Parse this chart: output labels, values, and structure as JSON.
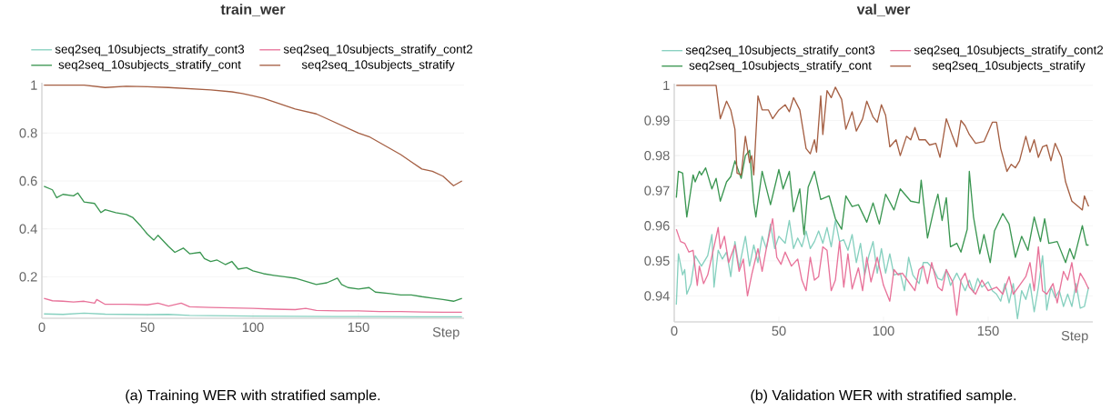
{
  "chart_data": [
    {
      "type": "line",
      "title": "train_wer",
      "xlabel": "Step",
      "xlim": [
        0,
        200
      ],
      "ylim": [
        0.027,
        1.01
      ],
      "xticks": [
        0,
        50,
        100,
        150
      ],
      "yticks": [
        0.2,
        0.4,
        0.6,
        0.8,
        1
      ],
      "grid": "y",
      "legend": "top",
      "line_style": "solid",
      "annotations": [
        "(a) Training WER with stratified sample."
      ],
      "series": [
        {
          "name": "seq2seq_10subjects_stratify_cont3",
          "color": "#86d0bf",
          "x": [
            1,
            10,
            20,
            30,
            40,
            50,
            60,
            70,
            80,
            90,
            100,
            120,
            140,
            160,
            180,
            199
          ],
          "values": [
            0.045,
            0.043,
            0.048,
            0.044,
            0.043,
            0.042,
            0.043,
            0.039,
            0.038,
            0.037,
            0.036,
            0.035,
            0.034,
            0.034,
            0.033,
            0.033
          ]
        },
        {
          "name": "seq2seq_10subjects_stratify_cont2",
          "color": "#e8739a",
          "x": [
            1,
            5,
            10,
            15,
            20,
            25,
            26,
            30,
            40,
            50,
            55,
            60,
            66,
            70,
            80,
            90,
            100,
            110,
            120,
            125,
            130,
            140,
            150,
            160,
            170,
            180,
            190,
            199
          ],
          "values": [
            0.11,
            0.1,
            0.098,
            0.095,
            0.098,
            0.09,
            0.105,
            0.085,
            0.085,
            0.083,
            0.09,
            0.078,
            0.09,
            0.075,
            0.072,
            0.07,
            0.068,
            0.065,
            0.063,
            0.068,
            0.06,
            0.058,
            0.058,
            0.055,
            0.055,
            0.053,
            0.052,
            0.052
          ]
        },
        {
          "name": "seq2seq_10subjects_stratify_cont",
          "color": "#3a9651",
          "x": [
            1,
            5,
            7,
            10,
            15,
            17,
            20,
            25,
            28,
            30,
            35,
            40,
            43,
            47,
            50,
            53,
            55,
            60,
            63,
            67,
            70,
            75,
            77,
            80,
            83,
            87,
            90,
            93,
            97,
            100,
            105,
            110,
            115,
            120,
            125,
            130,
            135,
            140,
            142,
            145,
            150,
            155,
            158,
            165,
            170,
            175,
            180,
            185,
            190,
            195,
            199
          ],
          "values": [
            0.578,
            0.563,
            0.53,
            0.544,
            0.538,
            0.55,
            0.512,
            0.506,
            0.468,
            0.48,
            0.468,
            0.46,
            0.448,
            0.41,
            0.378,
            0.353,
            0.373,
            0.327,
            0.302,
            0.32,
            0.296,
            0.302,
            0.276,
            0.264,
            0.27,
            0.251,
            0.264,
            0.232,
            0.238,
            0.225,
            0.213,
            0.206,
            0.2,
            0.194,
            0.181,
            0.168,
            0.175,
            0.194,
            0.168,
            0.155,
            0.149,
            0.155,
            0.136,
            0.13,
            0.124,
            0.124,
            0.117,
            0.111,
            0.105,
            0.098,
            0.11
          ]
        },
        {
          "name": "seq2seq_10subjects_stratify",
          "color": "#a55f43",
          "x": [
            1,
            10,
            20,
            30,
            40,
            50,
            60,
            70,
            80,
            90,
            95,
            100,
            105,
            110,
            115,
            120,
            125,
            130,
            135,
            140,
            145,
            150,
            155,
            160,
            165,
            170,
            175,
            180,
            185,
            190,
            195,
            199
          ],
          "values": [
            1,
            1,
            1,
            0.99,
            0.995,
            0.993,
            0.99,
            0.985,
            0.98,
            0.972,
            0.965,
            0.955,
            0.945,
            0.93,
            0.915,
            0.9,
            0.89,
            0.88,
            0.86,
            0.84,
            0.82,
            0.8,
            0.785,
            0.76,
            0.735,
            0.71,
            0.68,
            0.65,
            0.64,
            0.62,
            0.58,
            0.6
          ]
        }
      ]
    },
    {
      "type": "line",
      "title": "val_wer",
      "xlabel": "Step",
      "xlim": [
        0,
        200
      ],
      "ylim": [
        0.9326,
        1.0005
      ],
      "xticks": [
        0,
        50,
        100,
        150
      ],
      "yticks": [
        0.94,
        0.95,
        0.96,
        0.97,
        0.98,
        0.99,
        1
      ],
      "grid": "y",
      "legend": "top",
      "line_style": "solid",
      "annotations": [
        "(b) Validation WER with stratified sample."
      ],
      "series": [
        {
          "name": "seq2seq_10subjects_stratify_cont3",
          "color": "#86d0bf",
          "x": [
            1,
            2,
            4,
            5,
            6,
            8,
            10,
            13,
            16,
            18,
            19,
            21,
            23,
            25,
            27,
            29,
            31,
            34,
            36,
            38,
            40,
            42,
            44,
            46,
            48,
            50,
            53,
            55,
            57,
            59,
            61,
            63,
            65,
            67,
            69,
            71,
            73,
            75,
            77,
            79,
            81,
            83,
            85,
            87,
            89,
            91,
            93,
            95,
            97,
            99,
            101,
            103,
            105,
            108,
            110,
            112,
            114,
            117,
            119,
            121,
            124,
            126,
            128,
            130,
            132,
            135,
            137,
            139,
            141,
            143,
            145,
            147,
            150,
            152,
            154,
            156,
            158,
            160,
            162,
            164,
            166,
            168,
            170,
            172,
            174,
            176,
            178,
            180,
            182,
            184,
            186,
            188,
            190,
            192,
            194,
            196,
            198
          ],
          "values": [
            0.9375,
            0.952,
            0.946,
            0.9475,
            0.9405,
            0.9435,
            0.9515,
            0.9485,
            0.9515,
            0.9575,
            0.9425,
            0.953,
            0.9505,
            0.9525,
            0.9455,
            0.9555,
            0.948,
            0.957,
            0.9485,
            0.9545,
            0.9495,
            0.957,
            0.9535,
            0.9605,
            0.9535,
            0.957,
            0.955,
            0.9615,
            0.9535,
            0.9565,
            0.954,
            0.9585,
            0.9535,
            0.9555,
            0.9585,
            0.955,
            0.9595,
            0.954,
            0.9615,
            0.9555,
            0.956,
            0.953,
            0.9575,
            0.9495,
            0.955,
            0.946,
            0.9515,
            0.9555,
            0.9465,
            0.9535,
            0.9465,
            0.952,
            0.946,
            0.9465,
            0.9415,
            0.951,
            0.946,
            0.9435,
            0.9495,
            0.9495,
            0.9475,
            0.945,
            0.9445,
            0.9475,
            0.943,
            0.9465,
            0.944,
            0.9415,
            0.9445,
            0.941,
            0.945,
            0.9425,
            0.944,
            0.9415,
            0.9405,
            0.9385,
            0.9435,
            0.938,
            0.9435,
            0.9335,
            0.9415,
            0.939,
            0.9435,
            0.9355,
            0.9425,
            0.9515,
            0.936,
            0.9425,
            0.9395,
            0.9415,
            0.937,
            0.9405,
            0.937,
            0.9435,
            0.9365,
            0.937,
            0.9425
          ]
        },
        {
          "name": "seq2seq_10subjects_stratify_cont2",
          "color": "#e8739a",
          "x": [
            1,
            3,
            5,
            7,
            9,
            11,
            12,
            14,
            16,
            19,
            21,
            22,
            24,
            26,
            29,
            31,
            33,
            35,
            37,
            40,
            42,
            44,
            47,
            49,
            51,
            53,
            56,
            59,
            61,
            63,
            65,
            67,
            69,
            71,
            73,
            75,
            77,
            79,
            81,
            83,
            85,
            88,
            90,
            92,
            94,
            97,
            100,
            103,
            105,
            107,
            109,
            112,
            115,
            117,
            119,
            121,
            123,
            126,
            128,
            130,
            133,
            135,
            137,
            139,
            141,
            144,
            147,
            150,
            154,
            157,
            160,
            162,
            165,
            168,
            170,
            172,
            174,
            176,
            178,
            181,
            183,
            186,
            188,
            190,
            192,
            194,
            196,
            198
          ],
          "values": [
            0.959,
            0.9555,
            0.955,
            0.9525,
            0.953,
            0.943,
            0.9485,
            0.9435,
            0.946,
            0.954,
            0.9595,
            0.9535,
            0.957,
            0.9495,
            0.9545,
            0.947,
            0.9505,
            0.94,
            0.946,
            0.9535,
            0.947,
            0.9535,
            0.962,
            0.951,
            0.949,
            0.9525,
            0.9485,
            0.9505,
            0.9445,
            0.9415,
            0.951,
            0.9445,
            0.9455,
            0.954,
            0.953,
            0.9415,
            0.9445,
            0.9555,
            0.9425,
            0.952,
            0.942,
            0.948,
            0.9415,
            0.951,
            0.944,
            0.951,
            0.943,
            0.9385,
            0.9475,
            0.946,
            0.9465,
            0.944,
            0.9415,
            0.9475,
            0.9485,
            0.9435,
            0.9495,
            0.9425,
            0.9415,
            0.9475,
            0.944,
            0.9345,
            0.9445,
            0.9465,
            0.9425,
            0.9405,
            0.9445,
            0.9415,
            0.9425,
            0.9405,
            0.9455,
            0.9405,
            0.943,
            0.9455,
            0.9495,
            0.9415,
            0.954,
            0.9415,
            0.9405,
            0.9435,
            0.938,
            0.947,
            0.9445,
            0.9495,
            0.941,
            0.9465,
            0.9445,
            0.942
          ]
        },
        {
          "name": "seq2seq_10subjects_stratify_cont",
          "color": "#3a9651",
          "x": [
            1,
            2,
            4,
            6,
            9,
            10,
            12,
            13,
            15,
            18,
            20,
            22,
            25,
            27,
            29,
            32,
            34,
            36,
            38,
            39,
            42,
            46,
            50,
            52,
            55,
            57,
            60,
            62,
            64,
            67,
            70,
            74,
            77,
            80,
            82,
            85,
            88,
            92,
            95,
            98,
            101,
            105,
            108,
            113,
            117,
            118,
            121,
            124,
            126,
            128,
            130,
            132,
            135,
            137,
            140,
            141,
            143,
            146,
            148,
            151,
            153,
            157,
            160,
            163,
            166,
            169,
            172,
            175,
            177,
            179,
            183,
            187,
            189,
            191,
            195,
            197,
            198
          ],
          "values": [
            0.968,
            0.9755,
            0.975,
            0.9625,
            0.9745,
            0.9725,
            0.9755,
            0.9745,
            0.9765,
            0.9705,
            0.9735,
            0.967,
            0.9725,
            0.974,
            0.9785,
            0.9735,
            0.98,
            0.9815,
            0.9665,
            0.9625,
            0.9755,
            0.966,
            0.976,
            0.9705,
            0.9755,
            0.964,
            0.9705,
            0.9575,
            0.971,
            0.9755,
            0.9675,
            0.9685,
            0.962,
            0.959,
            0.9685,
            0.9655,
            0.966,
            0.961,
            0.9665,
            0.9605,
            0.969,
            0.9645,
            0.9705,
            0.967,
            0.9665,
            0.973,
            0.9565,
            0.9645,
            0.969,
            0.9615,
            0.968,
            0.954,
            0.955,
            0.9525,
            0.959,
            0.9755,
            0.9625,
            0.952,
            0.9575,
            0.9495,
            0.9585,
            0.9635,
            0.9605,
            0.951,
            0.957,
            0.953,
            0.9625,
            0.9555,
            0.962,
            0.955,
            0.9555,
            0.9495,
            0.9535,
            0.9505,
            0.96,
            0.9545,
            0.9545
          ]
        },
        {
          "name": "seq2seq_10subjects_stratify",
          "color": "#a55f43",
          "x": [
            1,
            20,
            22,
            25,
            27,
            29,
            30,
            32,
            34,
            36,
            37,
            38,
            40,
            42,
            45,
            47,
            50,
            53,
            55,
            57,
            60,
            63,
            65,
            67,
            68,
            70,
            71,
            73,
            75,
            77,
            80,
            82,
            85,
            87,
            90,
            92,
            95,
            97,
            99,
            101,
            103,
            106,
            108,
            111,
            113,
            115,
            117,
            120,
            122,
            125,
            127,
            130,
            133,
            135,
            137,
            139,
            141,
            144,
            148,
            152,
            154,
            156,
            159,
            161,
            163,
            165,
            168,
            170,
            172,
            174,
            176,
            178,
            180,
            182,
            185,
            187,
            190,
            193,
            195,
            196,
            198
          ],
          "values": [
            1,
            1,
            0.9905,
            0.9955,
            0.993,
            0.9875,
            0.975,
            0.9745,
            0.9855,
            0.978,
            0.98,
            0.9745,
            0.997,
            0.993,
            0.993,
            0.9905,
            0.993,
            0.9945,
            0.9925,
            0.9965,
            0.993,
            0.982,
            0.9805,
            0.9845,
            0.981,
            0.997,
            0.986,
            0.9985,
            0.9965,
            0.9995,
            0.996,
            0.9875,
            0.9925,
            0.987,
            0.9905,
            0.9955,
            0.991,
            0.9895,
            0.9945,
            0.9915,
            0.9825,
            0.9845,
            0.98,
            0.9855,
            0.9845,
            0.988,
            0.9845,
            0.9845,
            0.983,
            0.9835,
            0.9795,
            0.9905,
            0.9855,
            0.9825,
            0.99,
            0.9885,
            0.986,
            0.9835,
            0.984,
            0.9895,
            0.9895,
            0.982,
            0.9755,
            0.9775,
            0.9765,
            0.9785,
            0.9855,
            0.981,
            0.9845,
            0.9795,
            0.9825,
            0.983,
            0.9785,
            0.9835,
            0.9795,
            0.9725,
            0.967,
            0.9655,
            0.9645,
            0.9685,
            0.9655
          ]
        }
      ]
    }
  ]
}
